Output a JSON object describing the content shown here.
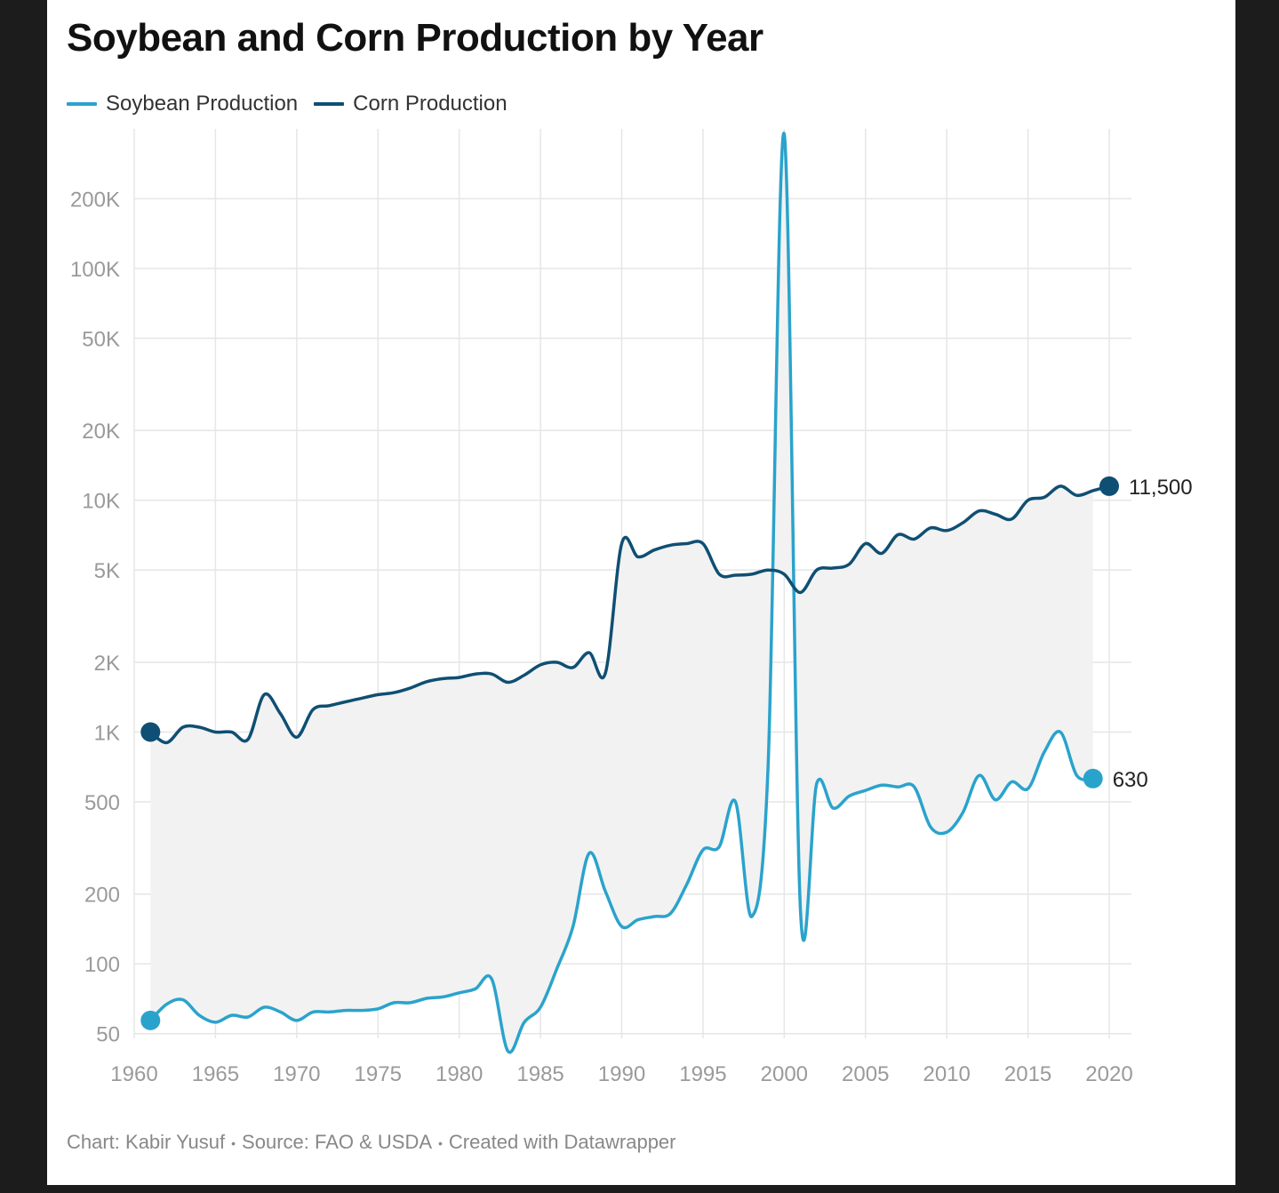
{
  "chart_data": {
    "type": "line",
    "title": "Soybean and Corn Production by Year",
    "xlabel": "",
    "ylabel": "",
    "y_scale": "log",
    "grid": true,
    "legend_position": "top-left",
    "x_ticks": [
      1960,
      1965,
      1970,
      1975,
      1980,
      1985,
      1990,
      1995,
      2000,
      2005,
      2010,
      2015,
      2020
    ],
    "y_ticks": [
      50,
      100,
      200,
      500,
      1000,
      2000,
      5000,
      10000,
      20000,
      50000,
      100000,
      200000
    ],
    "y_tick_labels": [
      "50",
      "100",
      "200",
      "500",
      "1K",
      "2K",
      "5K",
      "10K",
      "20K",
      "50K",
      "100K",
      "200K"
    ],
    "xlim": [
      1960,
      2020
    ],
    "ylim": [
      40,
      400000
    ],
    "area_fill_between_series": true,
    "x": [
      1961,
      1962,
      1963,
      1964,
      1965,
      1966,
      1967,
      1968,
      1969,
      1970,
      1971,
      1972,
      1973,
      1974,
      1975,
      1976,
      1977,
      1978,
      1979,
      1980,
      1981,
      1982,
      1983,
      1984,
      1985,
      1986,
      1987,
      1988,
      1989,
      1990,
      1991,
      1992,
      1993,
      1994,
      1995,
      1996,
      1997,
      1998,
      1999,
      2000,
      2001,
      2002,
      2003,
      2004,
      2005,
      2006,
      2007,
      2008,
      2009,
      2010,
      2011,
      2012,
      2013,
      2014,
      2015,
      2016,
      2017,
      2018,
      2019,
      2020
    ],
    "series": [
      {
        "name": "Soybean Production",
        "color": "#2aa3cc",
        "end_label": "630",
        "values": [
          57,
          67,
          70,
          60,
          56,
          60,
          59,
          65,
          62,
          57,
          62,
          62,
          63,
          63,
          64,
          68,
          68,
          71,
          72,
          75,
          78,
          86,
          42,
          56,
          65,
          95,
          145,
          300,
          205,
          145,
          155,
          160,
          165,
          220,
          310,
          320,
          500,
          160,
          700,
          380000,
          170,
          600,
          470,
          530,
          560,
          590,
          580,
          580,
          390,
          370,
          450,
          650,
          510,
          610,
          570,
          820,
          1000,
          650,
          630,
          null
        ],
        "last_value": 630
      },
      {
        "name": "Corn Production",
        "color": "#0f4f73",
        "end_label": "11,500",
        "values": [
          1000,
          900,
          1050,
          1050,
          1000,
          1000,
          930,
          1450,
          1200,
          950,
          1250,
          1300,
          1350,
          1400,
          1450,
          1480,
          1550,
          1650,
          1700,
          1720,
          1780,
          1780,
          1640,
          1760,
          1950,
          2000,
          1900,
          2200,
          1800,
          6500,
          5700,
          6100,
          6400,
          6500,
          6500,
          4800,
          4750,
          4800,
          5000,
          4800,
          4000,
          5000,
          5100,
          5300,
          6500,
          5900,
          7100,
          6800,
          7600,
          7400,
          8000,
          9000,
          8700,
          8300,
          10000,
          10300,
          11500,
          10500,
          11000,
          11500
        ],
        "last_value": 11500
      }
    ]
  },
  "legend": {
    "soybean_label": "Soybean Production",
    "corn_label": "Corn Production"
  },
  "footer": {
    "chart_by": "Chart: Kabir Yusuf",
    "source": "Source: FAO & USDA",
    "created_with": "Created with Datawrapper",
    "separator": "•"
  }
}
